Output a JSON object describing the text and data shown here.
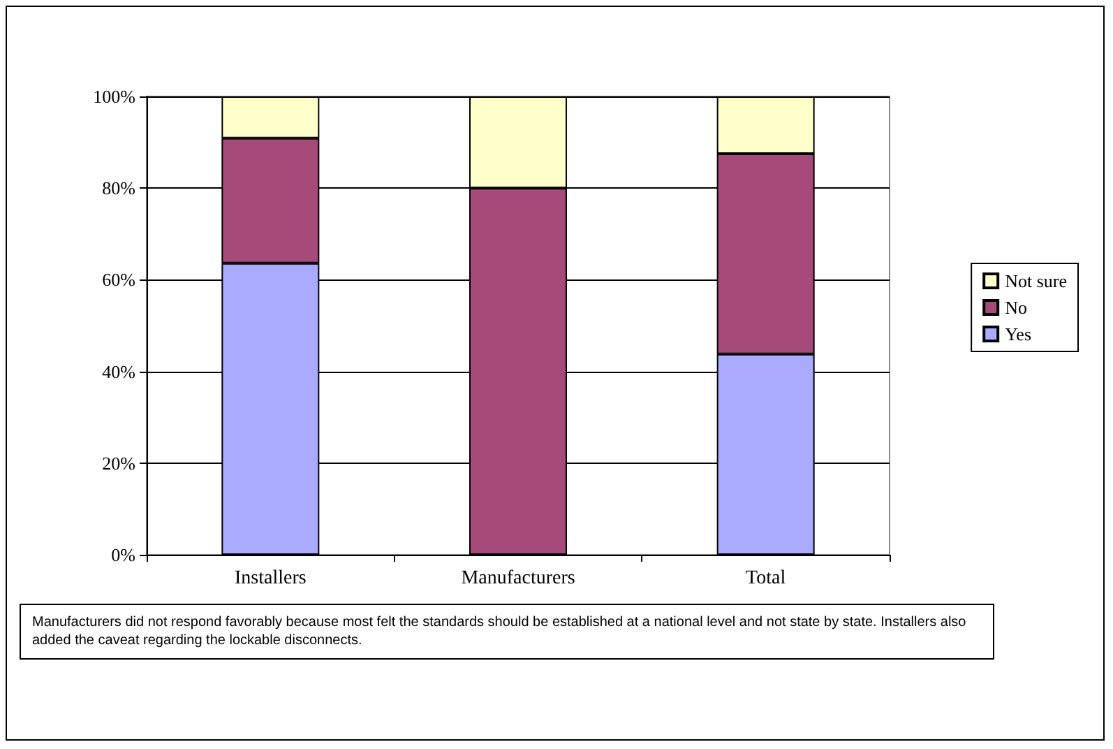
{
  "chart_data": {
    "type": "bar",
    "stacked": true,
    "categories": [
      "Installers",
      "Manufacturers",
      "Total"
    ],
    "series": [
      {
        "name": "Yes",
        "color": "#aaaaff",
        "values": [
          63.6,
          0,
          43.8
        ]
      },
      {
        "name": "No",
        "color": "#a64a7a",
        "values": [
          27.3,
          80,
          43.7
        ]
      },
      {
        "name": "Not sure",
        "color": "#ffffcc",
        "values": [
          9.1,
          20,
          12.5
        ]
      }
    ],
    "ylim": [
      0,
      100
    ],
    "yticks": [
      {
        "value": 0,
        "label": "0%"
      },
      {
        "value": 20,
        "label": "20%"
      },
      {
        "value": 40,
        "label": "40%"
      },
      {
        "value": 60,
        "label": "60%"
      },
      {
        "value": 80,
        "label": "80%"
      },
      {
        "value": 100,
        "label": "100%"
      }
    ],
    "grid": "y",
    "legend": "right",
    "annotations": [
      "Manufacturers did not respond favorably because most felt the standards should be established at a national level and not state by state.  Installers also added the caveat regarding the lockable disconnects."
    ]
  }
}
